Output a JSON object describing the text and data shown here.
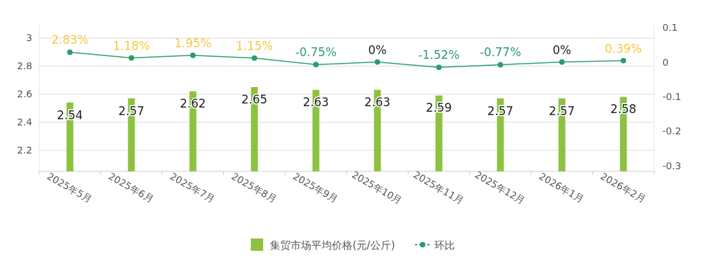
{
  "chart_data": {
    "type": "bar",
    "categories": [
      "2025年5月",
      "2025年6月",
      "2025年7月",
      "2025年8月",
      "2025年9月",
      "2025年10月",
      "2025年11月",
      "2025年12月",
      "2026年1月",
      "2026年2月"
    ],
    "series": [
      {
        "name": "集贸市场平均价格(元/公斤)",
        "color": "#8cc240",
        "values": [
          2.54,
          2.57,
          2.62,
          2.65,
          2.63,
          2.63,
          2.59,
          2.57,
          2.57,
          2.58
        ]
      },
      {
        "name": "环比",
        "type": "line",
        "axis": "y2",
        "color": "#2a9d6f",
        "values": [
          0.0283,
          0.0118,
          0.0195,
          0.0115,
          -0.0075,
          0,
          -0.0152,
          -0.0077,
          0,
          0.0039
        ],
        "value_labels": [
          "2.83%",
          "1.18%",
          "1.95%",
          "1.15%",
          "-0.75%",
          "0%",
          "-1.52%",
          "-0.77%",
          "0%",
          "0.39%"
        ]
      }
    ],
    "ylim": [
      2.05,
      3.09
    ],
    "yticks": [
      2.2,
      2.4,
      2.6,
      2.8,
      3
    ],
    "y2lim": [
      -0.316,
      0.106
    ],
    "y2ticks": [
      -0.3,
      -0.2,
      -0.1,
      0,
      0.1
    ],
    "data_labels": true,
    "grid": "y",
    "legend": "bottom",
    "marker": "circle",
    "line_style": "solid"
  }
}
